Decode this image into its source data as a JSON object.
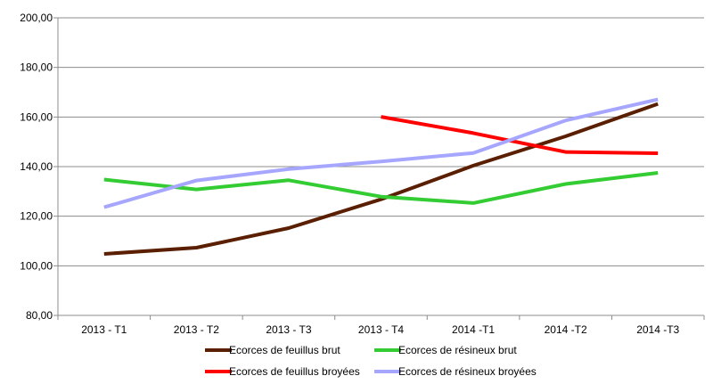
{
  "chart_data": {
    "type": "line",
    "categories": [
      "2013 - T1",
      "2013 - T2",
      "2013 - T3",
      "2013 - T4",
      "2014 -T1",
      "2014 -T2",
      "2014 -T3"
    ],
    "ylim": [
      80,
      200
    ],
    "yticks": [
      80,
      100,
      120,
      140,
      160,
      180,
      200
    ],
    "ytick_labels": [
      "80,00",
      "100,00",
      "120,00",
      "140,00",
      "160,00",
      "180,00",
      "200,00"
    ],
    "grid": "horizontal",
    "legend_position": "bottom",
    "series": [
      {
        "name": "Ecorces de feuillus brut",
        "color": "#5a1e00",
        "values": [
          104.8,
          107.3,
          115.2,
          126.8,
          140.4,
          152.2,
          165.3
        ]
      },
      {
        "name": "Ecorces de résineux brut",
        "color": "#33cc33",
        "values": [
          134.8,
          130.8,
          134.5,
          127.9,
          125.3,
          133.0,
          137.5
        ]
      },
      {
        "name": "Ecorces de feuillus broyées",
        "color": "#ff0000",
        "values": [
          null,
          null,
          null,
          160.1,
          153.5,
          145.9,
          145.4
        ]
      },
      {
        "name": "Ecorces de résineux broyées",
        "color": "#a6a6ff",
        "values": [
          123.6,
          134.4,
          139.0,
          142.1,
          145.5,
          158.6,
          167.1
        ]
      }
    ]
  }
}
